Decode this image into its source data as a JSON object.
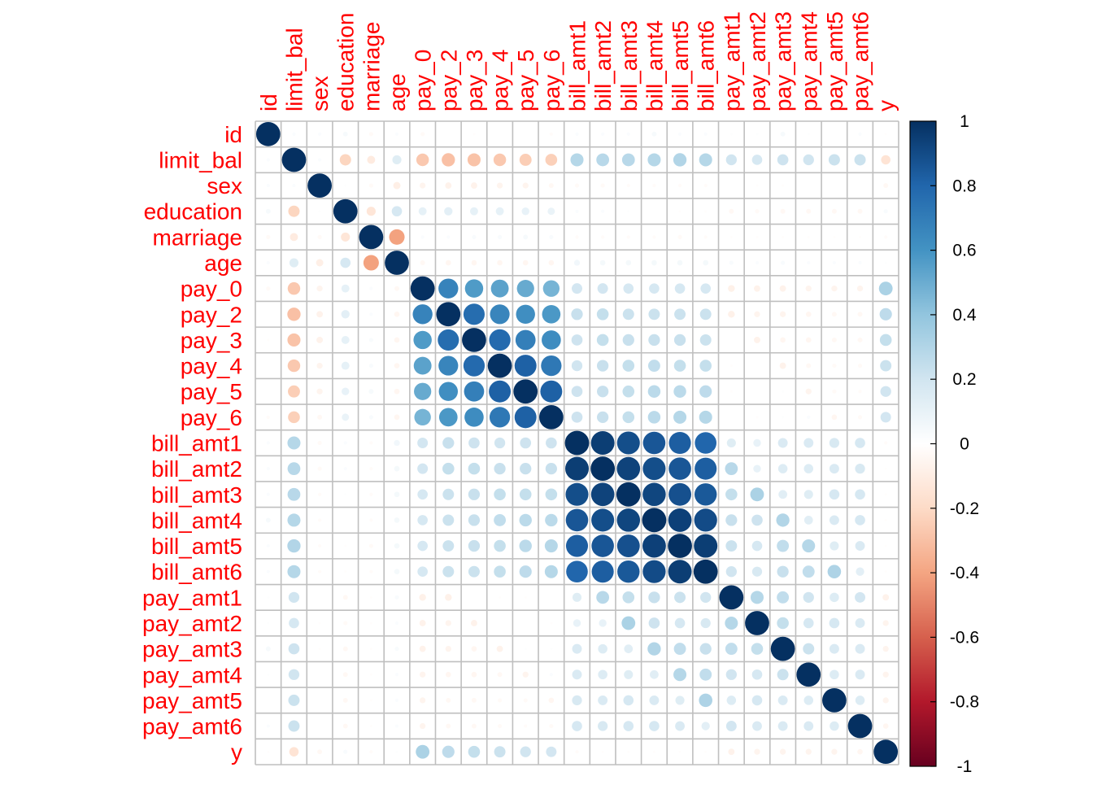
{
  "chart_data": {
    "type": "heatmap",
    "style": "circle correlation matrix (corrplot)",
    "variables": [
      "id",
      "limit_bal",
      "sex",
      "education",
      "marriage",
      "age",
      "pay_0",
      "pay_2",
      "pay_3",
      "pay_4",
      "pay_5",
      "pay_6",
      "bill_amt1",
      "bill_amt2",
      "bill_amt3",
      "bill_amt4",
      "bill_amt5",
      "bill_amt6",
      "pay_amt1",
      "pay_amt2",
      "pay_amt3",
      "pay_amt4",
      "pay_amt5",
      "pay_amt6",
      "y"
    ],
    "label_color": "#ff0000",
    "grid": true,
    "legend": {
      "position": "right",
      "range": [
        -1,
        1
      ],
      "ticks": [
        "1",
        "0.8",
        "0.6",
        "0.4",
        "0.2",
        "0",
        "-0.2",
        "-0.4",
        "-0.6",
        "-0.8",
        "-1"
      ],
      "colors": [
        "#67001f",
        "#b2182b",
        "#d6604d",
        "#f4a582",
        "#fddbc7",
        "#ffffff",
        "#d1e5f0",
        "#92c5de",
        "#4393c3",
        "#2166ac",
        "#053061"
      ]
    },
    "matrix": [
      [
        1,
        0.02,
        0.02,
        0.04,
        -0.03,
        0.02,
        -0.03,
        0,
        -0.01,
        0,
        0,
        -0.02,
        0.02,
        0.02,
        0.02,
        0.04,
        0.02,
        0.02,
        0.01,
        0.01,
        0.04,
        0.01,
        0,
        0.02,
        -0.01
      ],
      [
        0.02,
        1,
        0.02,
        -0.22,
        -0.11,
        0.14,
        -0.27,
        -0.3,
        -0.29,
        -0.27,
        -0.25,
        -0.24,
        0.29,
        0.28,
        0.28,
        0.29,
        0.3,
        0.29,
        0.2,
        0.18,
        0.21,
        0.2,
        0.22,
        0.22,
        -0.15
      ],
      [
        0.02,
        0.02,
        1,
        0.01,
        -0.03,
        -0.09,
        -0.06,
        -0.07,
        -0.07,
        -0.06,
        -0.06,
        -0.04,
        -0.03,
        -0.03,
        -0.02,
        -0.02,
        -0.02,
        -0.02,
        0,
        -0.01,
        -0.01,
        0,
        0,
        0,
        -0.04
      ],
      [
        0.04,
        -0.22,
        0.01,
        1,
        -0.14,
        0.18,
        0.11,
        0.12,
        0.11,
        0.11,
        0.1,
        0.09,
        0.02,
        0.02,
        0.01,
        0,
        -0.01,
        -0.01,
        -0.04,
        -0.03,
        -0.04,
        -0.04,
        -0.04,
        -0.04,
        0.03
      ],
      [
        -0.03,
        -0.11,
        -0.03,
        -0.14,
        1,
        -0.41,
        0.02,
        0.02,
        0.03,
        0.03,
        0.04,
        0.03,
        -0.02,
        -0.02,
        -0.02,
        -0.02,
        -0.03,
        -0.02,
        -0.01,
        -0.01,
        -0.01,
        -0.01,
        -0.01,
        -0.01,
        -0.02
      ],
      [
        0.02,
        0.14,
        -0.09,
        0.18,
        -0.41,
        1,
        -0.04,
        -0.05,
        -0.05,
        -0.05,
        -0.05,
        -0.05,
        0.06,
        0.05,
        0.05,
        0.05,
        0.05,
        0.05,
        0.03,
        0.02,
        0.03,
        0.02,
        0.02,
        0.02,
        0.01
      ],
      [
        -0.03,
        -0.27,
        -0.06,
        0.11,
        0.02,
        -0.04,
        1,
        0.67,
        0.57,
        0.54,
        0.51,
        0.47,
        0.19,
        0.19,
        0.18,
        0.18,
        0.18,
        0.18,
        -0.08,
        -0.07,
        -0.07,
        -0.06,
        -0.06,
        -0.06,
        0.32
      ],
      [
        0,
        -0.3,
        -0.07,
        0.12,
        0.02,
        -0.05,
        0.67,
        1,
        0.77,
        0.66,
        0.62,
        0.58,
        0.23,
        0.24,
        0.22,
        0.22,
        0.22,
        0.22,
        -0.08,
        -0.06,
        -0.06,
        -0.05,
        -0.04,
        -0.04,
        0.26
      ],
      [
        -0.01,
        -0.29,
        -0.07,
        0.11,
        0.03,
        -0.05,
        0.57,
        0.77,
        1,
        0.78,
        0.69,
        0.63,
        0.21,
        0.24,
        0.23,
        0.23,
        0.23,
        0.22,
        0,
        -0.07,
        -0.05,
        -0.05,
        -0.04,
        -0.04,
        0.24
      ],
      [
        0,
        -0.27,
        -0.06,
        0.11,
        0.03,
        -0.05,
        0.54,
        0.66,
        0.78,
        1,
        0.82,
        0.72,
        0.2,
        0.23,
        0.24,
        0.25,
        0.24,
        0.24,
        -0.01,
        0,
        -0.07,
        -0.04,
        -0.03,
        -0.03,
        0.22
      ],
      [
        0,
        -0.25,
        -0.06,
        0.1,
        0.04,
        -0.05,
        0.51,
        0.62,
        0.69,
        0.82,
        1,
        0.82,
        0.21,
        0.23,
        0.24,
        0.27,
        0.27,
        0.26,
        -0.01,
        0,
        0.01,
        -0.06,
        -0.03,
        -0.02,
        0.2
      ],
      [
        -0.02,
        -0.24,
        -0.04,
        0.09,
        0.03,
        -0.05,
        0.47,
        0.58,
        0.63,
        0.72,
        0.82,
        1,
        0.21,
        0.23,
        0.24,
        0.27,
        0.29,
        0.29,
        0,
        -0.01,
        0.01,
        0.02,
        -0.05,
        -0.03,
        0.19
      ],
      [
        0.02,
        0.29,
        -0.03,
        0.02,
        -0.02,
        0.06,
        0.19,
        0.23,
        0.21,
        0.2,
        0.21,
        0.21,
        1,
        0.95,
        0.89,
        0.86,
        0.83,
        0.8,
        0.14,
        0.1,
        0.16,
        0.16,
        0.17,
        0.18,
        -0.02
      ],
      [
        0.02,
        0.28,
        -0.03,
        0.02,
        -0.02,
        0.05,
        0.19,
        0.24,
        0.24,
        0.23,
        0.23,
        0.23,
        0.95,
        1,
        0.93,
        0.89,
        0.86,
        0.83,
        0.28,
        0.1,
        0.15,
        0.15,
        0.16,
        0.17,
        -0.01
      ],
      [
        0.02,
        0.28,
        -0.02,
        0.01,
        -0.02,
        0.05,
        0.18,
        0.22,
        0.23,
        0.24,
        0.24,
        0.24,
        0.89,
        0.93,
        1,
        0.92,
        0.88,
        0.85,
        0.24,
        0.32,
        0.13,
        0.14,
        0.18,
        0.18,
        -0.01
      ],
      [
        0.04,
        0.29,
        -0.02,
        0,
        -0.02,
        0.05,
        0.18,
        0.22,
        0.23,
        0.25,
        0.27,
        0.27,
        0.86,
        0.89,
        0.92,
        1,
        0.94,
        0.9,
        0.23,
        0.21,
        0.3,
        0.13,
        0.16,
        0.18,
        -0.01
      ],
      [
        0.02,
        0.3,
        -0.02,
        -0.01,
        -0.03,
        0.05,
        0.18,
        0.22,
        0.23,
        0.24,
        0.27,
        0.29,
        0.83,
        0.86,
        0.88,
        0.94,
        1,
        0.95,
        0.22,
        0.18,
        0.25,
        0.29,
        0.14,
        0.16,
        -0.01
      ],
      [
        0.02,
        0.29,
        -0.02,
        -0.01,
        -0.02,
        0.05,
        0.18,
        0.22,
        0.22,
        0.24,
        0.26,
        0.29,
        0.8,
        0.83,
        0.85,
        0.9,
        0.95,
        1,
        0.2,
        0.17,
        0.23,
        0.25,
        0.31,
        0.12,
        -0.01
      ],
      [
        0.01,
        0.2,
        0,
        -0.04,
        -0.01,
        0.03,
        -0.08,
        -0.08,
        0,
        -0.01,
        -0.01,
        0,
        0.14,
        0.28,
        0.24,
        0.23,
        0.22,
        0.2,
        1,
        0.29,
        0.25,
        0.2,
        0.15,
        0.19,
        -0.07
      ],
      [
        0.01,
        0.18,
        -0.01,
        -0.03,
        -0.01,
        0.02,
        -0.07,
        -0.06,
        -0.07,
        0,
        0,
        -0.01,
        0.1,
        0.1,
        0.32,
        0.21,
        0.18,
        0.17,
        0.29,
        1,
        0.24,
        0.18,
        0.18,
        0.16,
        -0.06
      ],
      [
        0.04,
        0.21,
        -0.01,
        -0.04,
        -0.01,
        0.03,
        -0.07,
        -0.06,
        -0.05,
        -0.07,
        0.01,
        0.01,
        0.16,
        0.15,
        0.13,
        0.3,
        0.25,
        0.23,
        0.25,
        0.24,
        1,
        0.22,
        0.16,
        0.16,
        -0.06
      ],
      [
        0.01,
        0.2,
        0,
        -0.04,
        -0.01,
        0.02,
        -0.06,
        -0.05,
        -0.05,
        -0.04,
        -0.06,
        0.02,
        0.16,
        0.15,
        0.14,
        0.13,
        0.29,
        0.25,
        0.2,
        0.18,
        0.22,
        1,
        0.15,
        0.16,
        -0.06
      ],
      [
        0,
        0.22,
        0,
        -0.04,
        -0.01,
        0.02,
        -0.06,
        -0.04,
        -0.04,
        -0.03,
        -0.03,
        -0.05,
        0.17,
        0.16,
        0.18,
        0.16,
        0.14,
        0.31,
        0.15,
        0.18,
        0.16,
        0.15,
        1,
        0.15,
        -0.06
      ],
      [
        0.02,
        0.22,
        0,
        -0.04,
        -0.01,
        0.02,
        -0.06,
        -0.04,
        -0.04,
        -0.03,
        -0.02,
        -0.03,
        0.18,
        0.17,
        0.18,
        0.18,
        0.16,
        0.12,
        0.19,
        0.16,
        0.16,
        0.16,
        0.15,
        1,
        -0.05
      ],
      [
        -0.01,
        -0.15,
        -0.04,
        0.03,
        -0.02,
        0.01,
        0.32,
        0.26,
        0.24,
        0.22,
        0.2,
        0.19,
        -0.02,
        -0.01,
        -0.01,
        -0.01,
        -0.01,
        -0.01,
        -0.07,
        -0.06,
        -0.06,
        -0.06,
        -0.06,
        -0.05,
        1
      ]
    ]
  }
}
